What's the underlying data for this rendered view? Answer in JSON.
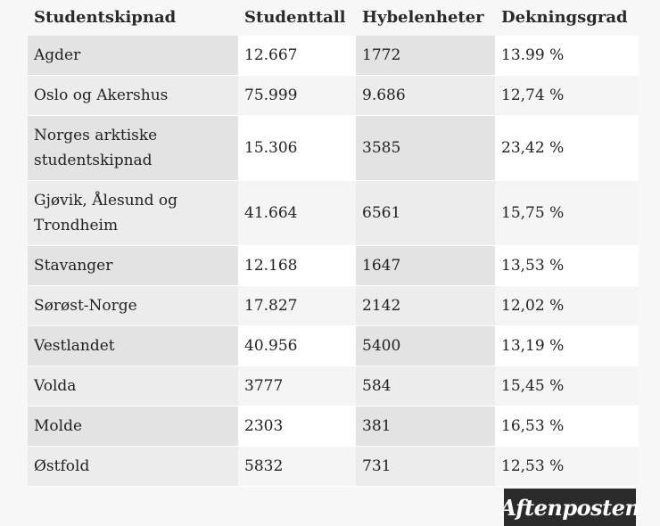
{
  "table": {
    "headers": [
      "Studentskipnad",
      "Studenttall",
      "Hybelenheter",
      "Dekningsgrad"
    ],
    "rows": [
      [
        "Agder",
        "12.667",
        "1772",
        "13.99 %"
      ],
      [
        "Oslo og Akershus",
        "75.999",
        "9.686",
        "12,74 %"
      ],
      [
        "Norges arktiske studentskipnad",
        "15.306",
        "3585",
        "23,42 %"
      ],
      [
        "Gjøvik, Ålesund og Trondheim",
        "41.664",
        "6561",
        "15,75 %"
      ],
      [
        "Stavanger",
        "12.168",
        "1647",
        "13,53 %"
      ],
      [
        "Sørøst-Norge",
        "17.827",
        "2142",
        "12,02 %"
      ],
      [
        "Vestlandet",
        "40.956",
        "5400",
        "13,19 %"
      ],
      [
        "Volda",
        "3777",
        "584",
        "15,45 %"
      ],
      [
        "Molde",
        "2303",
        "381",
        "16,53 %"
      ],
      [
        "Østfold",
        "5832",
        "731",
        "12,53 %"
      ]
    ]
  },
  "logo": {
    "text": "Aftenposten"
  }
}
